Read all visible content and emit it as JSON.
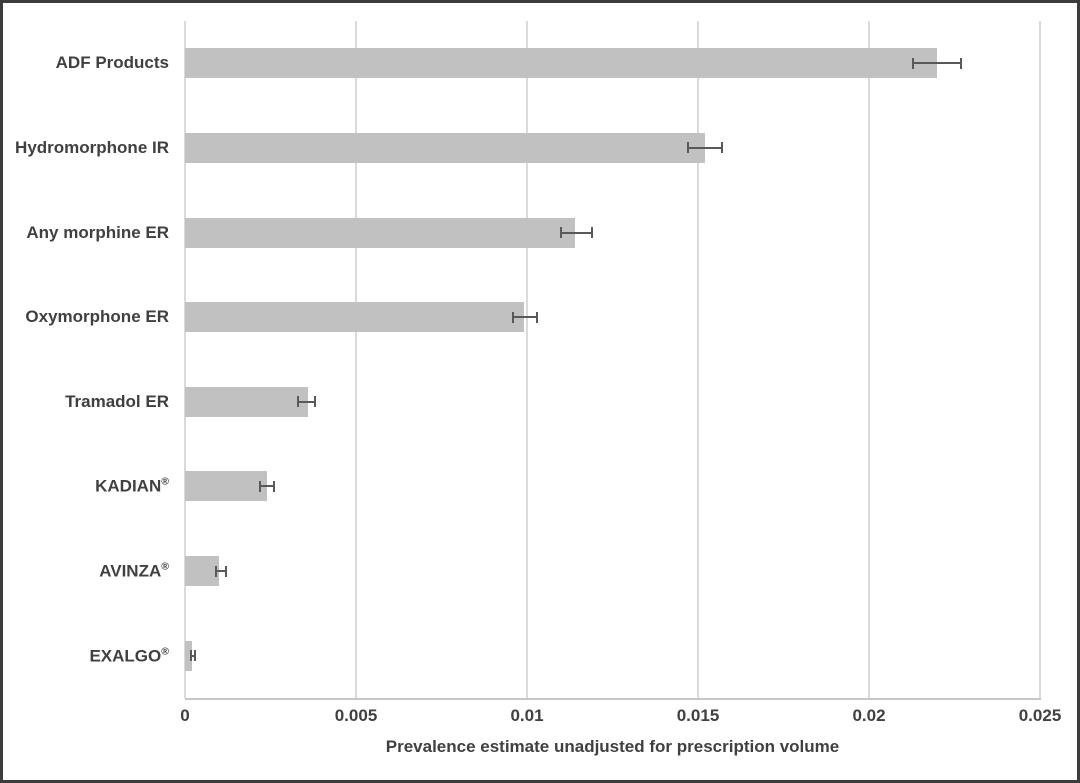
{
  "chart_data": {
    "type": "bar",
    "orientation": "horizontal",
    "title": "",
    "xlabel": "Prevalence estimate unadjusted for prescription volume",
    "ylabel": "",
    "xlim": [
      0,
      0.025
    ],
    "xticks": [
      0,
      0.005,
      0.01,
      0.015,
      0.02,
      0.025
    ],
    "xtick_labels": [
      "0",
      "0.005",
      "0.01",
      "0.015",
      "0.02",
      "0.025"
    ],
    "grid": true,
    "legend": false,
    "categories": [
      "ADF Products",
      "Hydromorphone IR",
      "Any morphine ER",
      "Oxymorphone ER",
      "Tramadol ER",
      "KADIAN®",
      "AVINZA®",
      "EXALGO®"
    ],
    "values": [
      0.022,
      0.0152,
      0.0114,
      0.0099,
      0.0036,
      0.0024,
      0.001,
      0.0002
    ],
    "error_low": [
      0.0213,
      0.0147,
      0.011,
      0.0096,
      0.0033,
      0.0022,
      0.0009,
      0.00017
    ],
    "error_high": [
      0.0227,
      0.0157,
      0.0119,
      0.0103,
      0.0038,
      0.0026,
      0.0012,
      0.0003
    ]
  },
  "colors": {
    "bar_fill": "#c1c1c1",
    "gridline": "#dadada",
    "axis_line": "#c6c6c6",
    "error_bar": "#595959",
    "text": "#404040",
    "border": "#3c3c3c"
  }
}
